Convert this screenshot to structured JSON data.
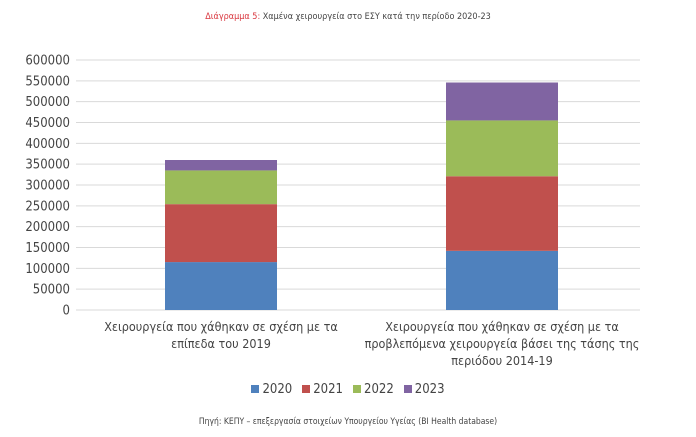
{
  "chart_data": {
    "type": "bar",
    "stacked": true,
    "title_prefix": "Διάγραμμα 5:",
    "title": "Χαμένα χειρουργεία στο ΕΣΥ κατά την περίοδο 2020-23",
    "categories": [
      "Χειρουργεία που χάθηκαν σε σχέση με τα επίπεδα του 2019",
      "Χειρουργεία που χάθηκαν σε σχέση με τα προβλεπόμενα χειρουργεία βάσει της τάσης της περιόδου 2014-19"
    ],
    "category_lines": [
      [
        "Χειρουργεία που χάθηκαν σε σχέση με τα",
        "επίπεδα του 2019"
      ],
      [
        "Χειρουργεία που χάθηκαν σε σχέση με τα",
        "προβλεπόμενα χειρουργεία βάσει της τάσης της",
        "περιόδου 2014-19"
      ]
    ],
    "series": [
      {
        "name": "2020",
        "color": "#4f81bd",
        "values": [
          115000,
          142000
        ]
      },
      {
        "name": "2021",
        "color": "#c0504d",
        "values": [
          139000,
          179000
        ]
      },
      {
        "name": "2022",
        "color": "#9bbb59",
        "values": [
          81000,
          134000
        ]
      },
      {
        "name": "2023",
        "color": "#8064a2",
        "values": [
          25000,
          91000
        ]
      }
    ],
    "ylim": [
      0,
      600000
    ],
    "yticks": [
      "0",
      "50000",
      "100000",
      "150000",
      "200000",
      "250000",
      "300000",
      "350000",
      "400000",
      "450000",
      "500000",
      "550000",
      "600000"
    ],
    "grid": true,
    "legend_position": "bottom",
    "xlabel": "",
    "ylabel": ""
  },
  "source": "Πηγή: ΚΕΠΥ – επεξεργασία στοιχείων Υπουργείου Υγείας (BI Health database)"
}
